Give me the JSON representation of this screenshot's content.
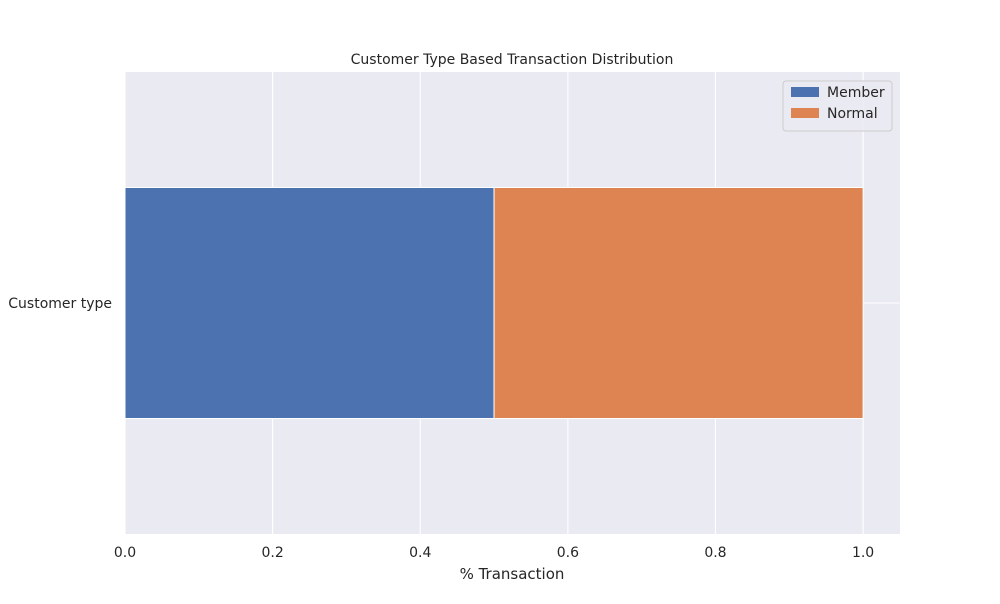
{
  "chart_data": {
    "type": "bar",
    "orientation": "horizontal",
    "stacked": true,
    "title": "Customer Type Based Transaction Distribution",
    "xlabel": "% Transaction",
    "ylabel": "",
    "categories": [
      "Customer type"
    ],
    "series": [
      {
        "name": "Member",
        "values": [
          0.5
        ],
        "color": "#4c72b0"
      },
      {
        "name": "Normal",
        "values": [
          0.5
        ],
        "color": "#dd8452"
      }
    ],
    "xlim": [
      0.0,
      1.05
    ],
    "xticks": [
      0.0,
      0.2,
      0.4,
      0.6,
      0.8,
      1.0
    ],
    "xtick_labels": [
      "0.0",
      "0.2",
      "0.4",
      "0.6",
      "0.8",
      "1.0"
    ],
    "grid": true,
    "legend_position": "top-right",
    "style": {
      "plot_background": "#eaeaf2",
      "grid_color": "#ffffff"
    }
  }
}
